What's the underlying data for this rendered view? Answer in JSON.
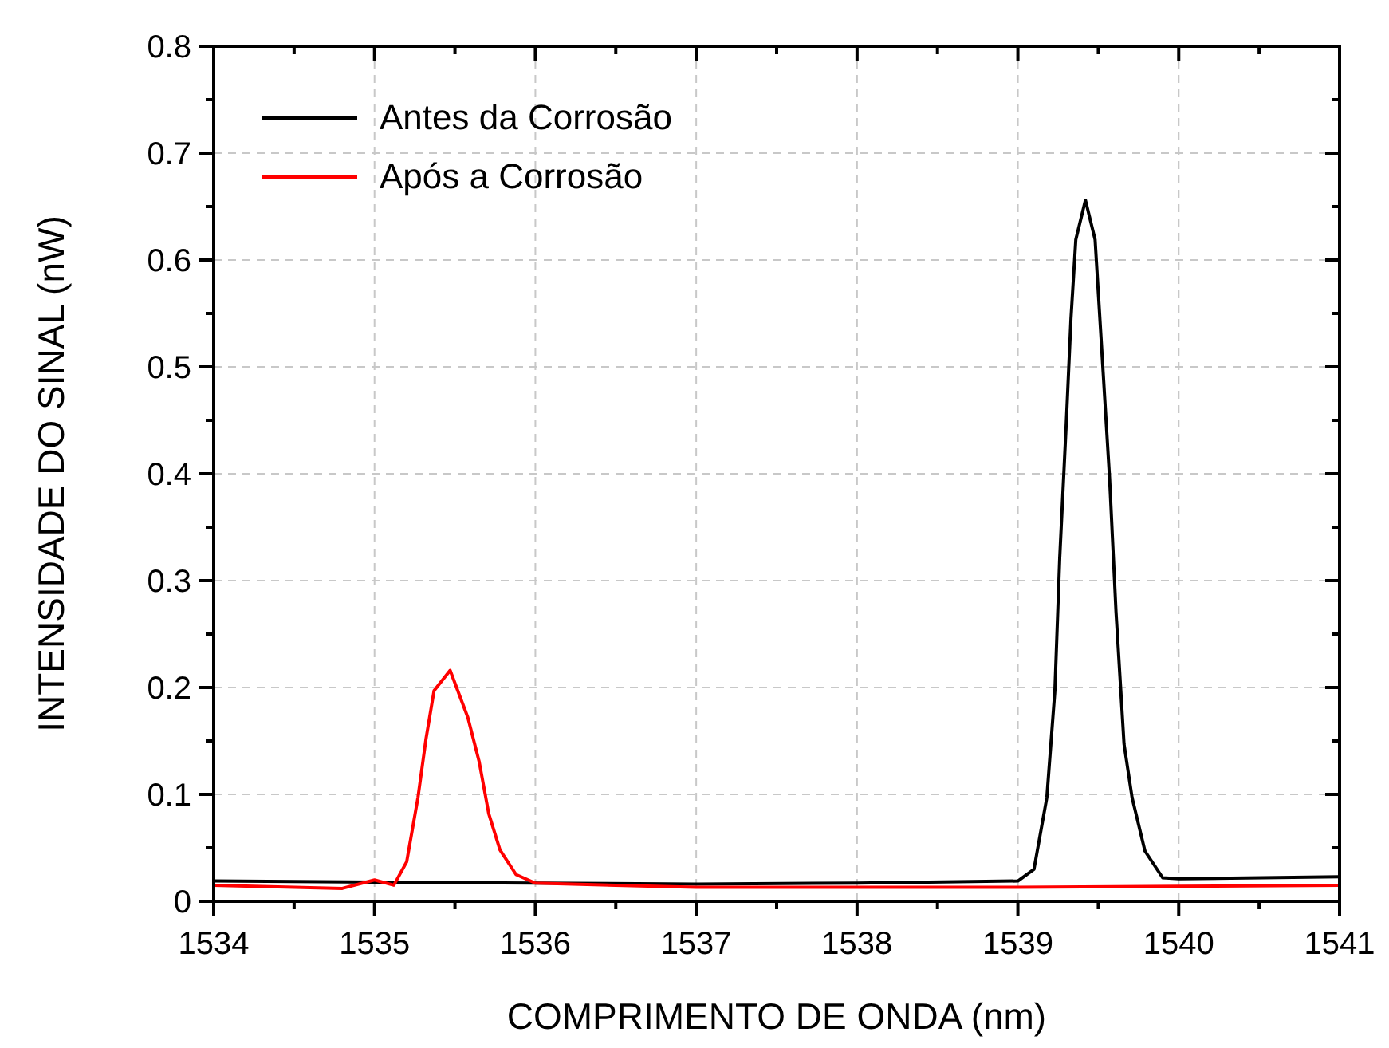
{
  "chart_data": {
    "type": "line",
    "xlabel": "COMPRIMENTO DE ONDA (nm)",
    "ylabel": "INTENSIDADE DO SINAL (nW)",
    "xlim": [
      1534,
      1541
    ],
    "ylim": [
      0,
      0.8
    ],
    "xticks": [
      1534,
      {
        "value": 1534.5,
        "label": null
      },
      1535,
      {
        "value": 1535.5,
        "label": null
      },
      1536,
      {
        "value": 1536.5,
        "label": null
      },
      1537,
      {
        "value": 1537.5,
        "label": null
      },
      1538,
      {
        "value": 1538.5,
        "label": null
      },
      1539,
      {
        "value": 1539.5,
        "label": null
      },
      1540,
      {
        "value": 1540.5,
        "label": null
      },
      1541
    ],
    "yticks": [
      0.0,
      {
        "value": 0.05,
        "label": null
      },
      {
        "value": 0.1,
        "label": "0.1"
      },
      {
        "value": 0.15,
        "label": null
      },
      {
        "value": 0.2,
        "label": "0.2"
      },
      {
        "value": 0.25,
        "label": null
      },
      {
        "value": 0.3,
        "label": "0.3"
      },
      {
        "value": 0.35,
        "label": null
      },
      {
        "value": 0.4,
        "label": "0.4"
      },
      {
        "value": 0.45,
        "label": null
      },
      {
        "value": 0.5,
        "label": "0.5"
      },
      {
        "value": 0.55,
        "label": null
      },
      {
        "value": 0.6,
        "label": "0.6"
      },
      {
        "value": 0.65,
        "label": null
      },
      {
        "value": 0.7,
        "label": "0.7"
      },
      {
        "value": 0.75,
        "label": null
      },
      {
        "value": 0.8,
        "label": "0.8"
      }
    ],
    "grid": true,
    "legend": "top left",
    "line_style": "solid",
    "marker": "none",
    "series": [
      {
        "name": "Antes da Corrosão",
        "color": "#000000",
        "x": [
          1534,
          1535,
          1536,
          1537,
          1538,
          1539,
          1539.1,
          1539.18,
          1539.23,
          1539.26,
          1539.3,
          1539.33,
          1539.36,
          1539.42,
          1539.48,
          1539.53,
          1539.57,
          1539.61,
          1539.66,
          1539.71,
          1539.79,
          1539.9,
          1540,
          1541
        ],
        "values": [
          0.019,
          0.018,
          0.017,
          0.016,
          0.017,
          0.019,
          0.03,
          0.097,
          0.197,
          0.321,
          0.445,
          0.545,
          0.619,
          0.656,
          0.619,
          0.495,
          0.396,
          0.271,
          0.147,
          0.097,
          0.047,
          0.022,
          0.021,
          0.023
        ]
      },
      {
        "name": "Após a Corrosão",
        "color": "#ff0000",
        "x": [
          1534,
          1534.8,
          1535,
          1535.12,
          1535.2,
          1535.27,
          1535.32,
          1535.37,
          1535.47,
          1535.58,
          1535.65,
          1535.71,
          1535.78,
          1535.88,
          1536,
          1537,
          1538,
          1539,
          1540,
          1541
        ],
        "values": [
          0.015,
          0.012,
          0.02,
          0.015,
          0.037,
          0.097,
          0.152,
          0.197,
          0.216,
          0.172,
          0.131,
          0.082,
          0.048,
          0.025,
          0.017,
          0.013,
          0.013,
          0.013,
          0.014,
          0.015
        ]
      }
    ]
  }
}
